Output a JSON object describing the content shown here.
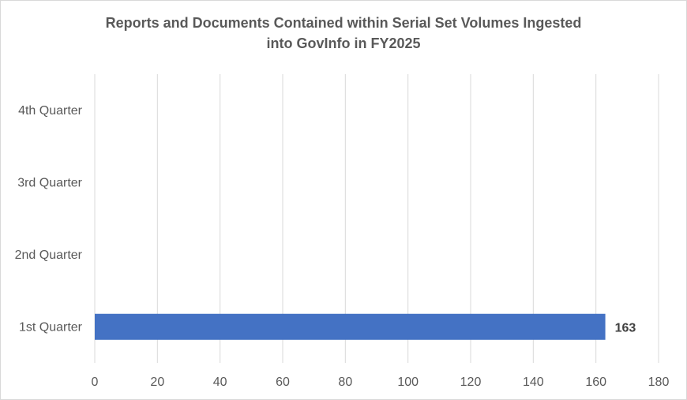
{
  "chart_data": {
    "type": "bar",
    "orientation": "horizontal",
    "title_lines": [
      "Reports and Documents Contained within Serial Set Volumes Ingested",
      "into GovInfo in FY2025"
    ],
    "categories": [
      "1st Quarter",
      "2nd Quarter",
      "3rd Quarter",
      "4th Quarter"
    ],
    "values": [
      163,
      null,
      null,
      null
    ],
    "data_labels": [
      "163",
      "",
      "",
      ""
    ],
    "xlim": [
      0,
      180
    ],
    "x_ticks": [
      0,
      20,
      40,
      60,
      80,
      100,
      120,
      140,
      160,
      180
    ],
    "grid": true,
    "legend": "none",
    "colors": {
      "bar": "#4472C4",
      "grid": "#d9d9d9",
      "text": "#595959",
      "title": "#595959",
      "label": "#404040"
    }
  }
}
